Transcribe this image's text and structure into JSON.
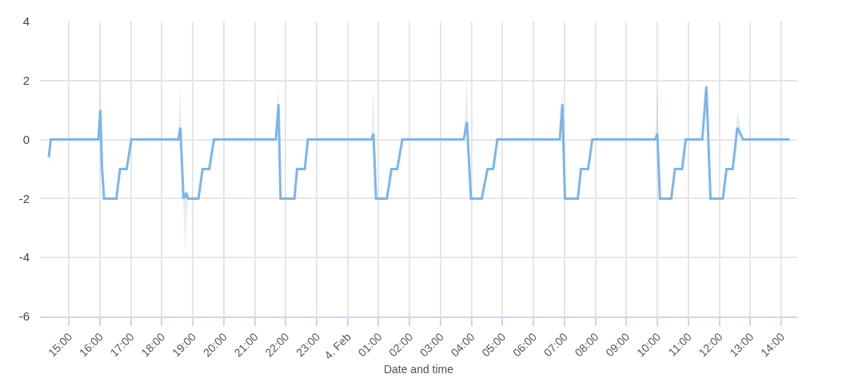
{
  "chart_data": {
    "type": "line",
    "xlabel": "Date and time",
    "x": [
      "--02-03T14:21",
      "--02-03T14:25",
      "--02-03T15:57",
      "--02-03T16:01",
      "--02-03T16:04",
      "--02-03T16:08",
      "--02-03T16:32",
      "--02-03T16:39",
      "--02-03T16:52",
      "--02-03T17:01",
      "--02-03T18:32",
      "--02-03T18:36",
      "--02-03T18:42",
      "--02-03T18:46",
      "--02-03T18:47",
      "--02-03T18:51",
      "--02-03T19:11",
      "--02-03T19:19",
      "--02-03T19:32",
      "--02-03T19:41",
      "--02-03T21:41",
      "--02-03T21:46",
      "--02-03T21:50",
      "--02-03T22:17",
      "--02-03T22:22",
      "--02-03T22:37",
      "--02-03T22:43",
      "--02-04T00:46",
      "--02-04T00:50",
      "--02-04T00:55",
      "--02-04T01:16",
      "--02-04T01:25",
      "--02-04T01:36",
      "--02-04T01:46",
      "--02-04T03:45",
      "--02-04T03:51",
      "--02-04T03:59",
      "--02-04T04:20",
      "--02-04T04:31",
      "--02-04T04:42",
      "--02-04T04:50",
      "--02-04T06:51",
      "--02-04T06:56",
      "--02-04T07:01",
      "--02-04T07:26",
      "--02-04T07:32",
      "--02-04T07:46",
      "--02-04T07:54",
      "--02-04T09:56",
      "--02-04T10:00",
      "--02-04T10:05",
      "--02-04T10:27",
      "--02-04T10:34",
      "--02-04T10:48",
      "--02-04T10:55",
      "--02-04T11:27",
      "--02-04T11:35",
      "--02-04T11:43",
      "--02-04T12:07",
      "--02-04T12:14",
      "--02-04T12:26",
      "--02-04T12:35",
      "--02-04T12:46",
      "--02-04T14:16"
    ],
    "series": [
      {
        "color": "#7cb5ec",
        "values": [
          -0.6,
          0,
          0,
          1.0,
          -0.9,
          -2,
          -2,
          -1,
          -1,
          0,
          0,
          0.4,
          -2,
          -1.9,
          -1.8,
          -2,
          -2,
          -1,
          -1,
          0,
          0,
          1.2,
          -2,
          -2,
          -1,
          -1,
          0,
          0,
          0.2,
          -2,
          -2,
          -1,
          -1,
          0,
          0,
          0.6,
          -2,
          -2,
          -1,
          -1,
          0,
          0,
          1.2,
          -2,
          -2,
          -1,
          -1,
          0,
          0,
          0.2,
          -2,
          -2,
          -1,
          -1,
          0,
          0,
          1.8,
          -2,
          -2,
          -1,
          -1,
          0.4,
          0,
          0
        ],
        "lower": [
          -0.9,
          0,
          0,
          1.0,
          -0.9,
          -2,
          -2,
          -1,
          -1,
          0,
          0,
          0.4,
          -2.5,
          -3.9,
          -3.0,
          -2,
          -2,
          -1,
          -1,
          0,
          0,
          1.2,
          -2,
          -2,
          -1,
          -1,
          0,
          0,
          0.2,
          -2,
          -2,
          -1,
          -1,
          0,
          0,
          0.6,
          -2,
          -2,
          -1,
          -1,
          0,
          0,
          1.2,
          -2,
          -2,
          -1,
          -1,
          0,
          0,
          0.2,
          -2,
          -2,
          -1,
          -1,
          0,
          0,
          1.8,
          -2,
          -2,
          -1,
          -1,
          0.4,
          0,
          0
        ],
        "upper": [
          -0.6,
          0,
          0,
          2.1,
          -0.9,
          -2,
          -2,
          -1,
          -1,
          0,
          0,
          1.9,
          -2,
          -1.9,
          -1.8,
          -2,
          -2,
          -1,
          -1,
          0,
          0,
          1.9,
          -2,
          -2,
          -1,
          -1,
          0,
          0,
          1.9,
          -2,
          -2,
          -1,
          -1,
          0,
          0,
          2.0,
          -2,
          -2,
          -1,
          -1,
          0,
          0,
          1.8,
          -2,
          -2,
          -1,
          -1,
          0,
          0,
          1.9,
          -2,
          -2,
          -1,
          -1,
          0,
          0,
          2.0,
          -2,
          -2,
          -1,
          -1,
          1.0,
          0,
          0
        ]
      }
    ],
    "xlim": [
      "--02-03T14:04",
      "--02-04T14:31"
    ],
    "xticks": [
      {
        "value": "--02-03T15:00",
        "label": "15:00"
      },
      {
        "value": "--02-03T16:00",
        "label": "16:00"
      },
      {
        "value": "--02-03T17:00",
        "label": "17:00"
      },
      {
        "value": "--02-03T18:00",
        "label": "18:00"
      },
      {
        "value": "--02-03T19:00",
        "label": "19:00"
      },
      {
        "value": "--02-03T20:00",
        "label": "20:00"
      },
      {
        "value": "--02-03T21:00",
        "label": "21:00"
      },
      {
        "value": "--02-03T22:00",
        "label": "22:00"
      },
      {
        "value": "--02-03T23:00",
        "label": "23:00"
      },
      {
        "value": "--02-04T00:00",
        "label": "4. Feb"
      },
      {
        "value": "--02-04T01:00",
        "label": "01:00"
      },
      {
        "value": "--02-04T02:00",
        "label": "02:00"
      },
      {
        "value": "--02-04T03:00",
        "label": "03:00"
      },
      {
        "value": "--02-04T04:00",
        "label": "04:00"
      },
      {
        "value": "--02-04T05:00",
        "label": "05:00"
      },
      {
        "value": "--02-04T06:00",
        "label": "06:00"
      },
      {
        "value": "--02-04T07:00",
        "label": "07:00"
      },
      {
        "value": "--02-04T08:00",
        "label": "08:00"
      },
      {
        "value": "--02-04T09:00",
        "label": "09:00"
      },
      {
        "value": "--02-04T10:00",
        "label": "10:00"
      },
      {
        "value": "--02-04T11:00",
        "label": "11:00"
      },
      {
        "value": "--02-04T12:00",
        "label": "12:00"
      },
      {
        "value": "--02-04T13:00",
        "label": "13:00"
      },
      {
        "value": "--02-04T14:00",
        "label": "14:00"
      }
    ],
    "ylim": [
      -6,
      4
    ],
    "yticks": [
      -6,
      -4,
      -2,
      0,
      2,
      4
    ],
    "grid": true
  }
}
